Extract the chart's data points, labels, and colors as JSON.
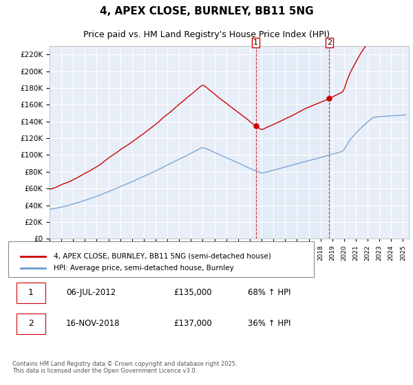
{
  "title": "4, APEX CLOSE, BURNLEY, BB11 5NG",
  "subtitle": "Price paid vs. HM Land Registry's House Price Index (HPI)",
  "red_label": "4, APEX CLOSE, BURNLEY, BB11 5NG (semi-detached house)",
  "blue_label": "HPI: Average price, semi-detached house, Burnley",
  "purchase1_date": "06-JUL-2012",
  "purchase1_price": 135000,
  "purchase1_pct": "68% ↑ HPI",
  "purchase2_date": "16-NOV-2018",
  "purchase2_price": 137000,
  "purchase2_pct": "36% ↑ HPI",
  "footer": "Contains HM Land Registry data © Crown copyright and database right 2025.\nThis data is licensed under the Open Government Licence v3.0.",
  "ylim": [
    0,
    230000
  ],
  "yticks": [
    0,
    20000,
    40000,
    60000,
    80000,
    100000,
    120000,
    140000,
    160000,
    180000,
    200000,
    220000
  ],
  "background_color": "#ffffff",
  "plot_bg_color": "#e8eef8",
  "grid_color": "#ffffff",
  "red_color": "#cc0000",
  "blue_color": "#6699cc",
  "highlight_bg": "#dce8f5"
}
